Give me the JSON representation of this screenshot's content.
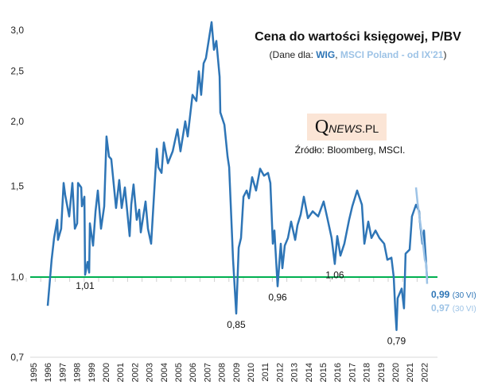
{
  "title": "Cena do wartości księgowej, P/BV",
  "subtitle": {
    "open": "(Dane dla: ",
    "wig": "WIG",
    "sep": ", ",
    "msci": "MSCI Poland - od IX'21",
    "close": ")"
  },
  "logo": {
    "q": "Q",
    "news": "NEWS",
    "pl": ".PL"
  },
  "source": "Źródło: Bloomberg, MSCI.",
  "end_labels": [
    {
      "value": "0,99",
      "date": "(30 VI)",
      "color": "#2e75b6"
    },
    {
      "value": "0,97",
      "date": "(30 VI)",
      "color": "#9dc3e6"
    }
  ],
  "chart_data": {
    "type": "line",
    "title": "Cena do wartości księgowej, P/BV",
    "xlabel": "",
    "ylabel": "",
    "yscale": "log",
    "ylim": [
      0.7,
      3.1
    ],
    "xlim": [
      1995,
      2022
    ],
    "yticks": [
      {
        "v": 0.7,
        "label": "0,7"
      },
      {
        "v": 1.0,
        "label": "1,0"
      },
      {
        "v": 1.5,
        "label": "1,5"
      },
      {
        "v": 2.0,
        "label": "2,0"
      },
      {
        "v": 2.5,
        "label": "2,5"
      },
      {
        "v": 3.0,
        "label": "3,0"
      }
    ],
    "xticks": [
      "1995",
      "1996",
      "1997",
      "1998",
      "1999",
      "2000",
      "2001",
      "2002",
      "2003",
      "2004",
      "2005",
      "2006",
      "2007",
      "2008",
      "2009",
      "2010",
      "2011",
      "2012",
      "2013",
      "2014",
      "2015",
      "2016",
      "2017",
      "2018",
      "2019",
      "2020",
      "2021",
      "2022"
    ],
    "reference_line": {
      "value": 1.0,
      "color": "#00b050"
    },
    "series": [
      {
        "name": "WIG",
        "color": "#2e75b6",
        "points": [
          [
            1995.99,
            0.88
          ],
          [
            1996.26,
            1.08
          ],
          [
            1996.43,
            1.19
          ],
          [
            1996.65,
            1.29
          ],
          [
            1996.7,
            1.18
          ],
          [
            1996.92,
            1.24
          ],
          [
            1997.09,
            1.52
          ],
          [
            1997.2,
            1.44
          ],
          [
            1997.47,
            1.31
          ],
          [
            1997.69,
            1.52
          ],
          [
            1997.86,
            1.24
          ],
          [
            1998.02,
            1.27
          ],
          [
            1998.08,
            1.52
          ],
          [
            1998.3,
            1.49
          ],
          [
            1998.35,
            1.37
          ],
          [
            1998.52,
            1.43
          ],
          [
            1998.57,
            1.01
          ],
          [
            1998.74,
            1.07
          ],
          [
            1998.85,
            1.02
          ],
          [
            1998.9,
            1.27
          ],
          [
            1999.12,
            1.15
          ],
          [
            1999.29,
            1.34
          ],
          [
            1999.45,
            1.47
          ],
          [
            1999.67,
            1.24
          ],
          [
            1999.89,
            1.37
          ],
          [
            2000.05,
            1.87
          ],
          [
            2000.22,
            1.71
          ],
          [
            2000.38,
            1.69
          ],
          [
            2000.71,
            1.36
          ],
          [
            2000.93,
            1.54
          ],
          [
            2001.1,
            1.36
          ],
          [
            2001.32,
            1.49
          ],
          [
            2001.65,
            1.2
          ],
          [
            2001.76,
            1.38
          ],
          [
            2001.92,
            1.51
          ],
          [
            2002.14,
            1.29
          ],
          [
            2002.31,
            1.35
          ],
          [
            2002.42,
            1.22
          ],
          [
            2002.75,
            1.4
          ],
          [
            2002.91,
            1.24
          ],
          [
            2003.13,
            1.16
          ],
          [
            2003.52,
            1.77
          ],
          [
            2003.63,
            1.63
          ],
          [
            2003.85,
            1.59
          ],
          [
            2004.01,
            1.82
          ],
          [
            2004.29,
            1.66
          ],
          [
            2004.62,
            1.75
          ],
          [
            2004.95,
            1.93
          ],
          [
            2005.16,
            1.75
          ],
          [
            2005.49,
            2.0
          ],
          [
            2005.66,
            1.87
          ],
          [
            2005.99,
            2.25
          ],
          [
            2006.26,
            2.19
          ],
          [
            2006.43,
            2.5
          ],
          [
            2006.59,
            2.25
          ],
          [
            2006.76,
            2.59
          ],
          [
            2006.92,
            2.65
          ],
          [
            2007.31,
            3.11
          ],
          [
            2007.47,
            2.75
          ],
          [
            2007.64,
            2.86
          ],
          [
            2007.86,
            2.44
          ],
          [
            2007.91,
            2.08
          ],
          [
            2008.19,
            1.97
          ],
          [
            2008.41,
            1.71
          ],
          [
            2008.52,
            1.63
          ],
          [
            2008.79,
            1.08
          ],
          [
            2009.01,
            0.85
          ],
          [
            2009.18,
            1.14
          ],
          [
            2009.34,
            1.19
          ],
          [
            2009.51,
            1.43
          ],
          [
            2009.73,
            1.47
          ],
          [
            2009.89,
            1.42
          ],
          [
            2010.11,
            1.56
          ],
          [
            2010.38,
            1.47
          ],
          [
            2010.66,
            1.62
          ],
          [
            2010.93,
            1.57
          ],
          [
            2011.21,
            1.59
          ],
          [
            2011.37,
            1.52
          ],
          [
            2011.54,
            1.16
          ],
          [
            2011.65,
            1.23
          ],
          [
            2011.87,
            0.96
          ],
          [
            2012.09,
            1.16
          ],
          [
            2012.2,
            1.04
          ],
          [
            2012.36,
            1.15
          ],
          [
            2012.58,
            1.19
          ],
          [
            2012.8,
            1.28
          ],
          [
            2013.08,
            1.18
          ],
          [
            2013.24,
            1.26
          ],
          [
            2013.46,
            1.32
          ],
          [
            2013.68,
            1.43
          ],
          [
            2013.96,
            1.3
          ],
          [
            2014.29,
            1.34
          ],
          [
            2014.67,
            1.31
          ],
          [
            2015.05,
            1.4
          ],
          [
            2015.33,
            1.29
          ],
          [
            2015.6,
            1.19
          ],
          [
            2015.82,
            1.06
          ],
          [
            2015.99,
            1.2
          ],
          [
            2016.21,
            1.1
          ],
          [
            2016.48,
            1.16
          ],
          [
            2016.81,
            1.29
          ],
          [
            2017.03,
            1.37
          ],
          [
            2017.36,
            1.47
          ],
          [
            2017.69,
            1.38
          ],
          [
            2017.86,
            1.16
          ],
          [
            2018.13,
            1.28
          ],
          [
            2018.35,
            1.19
          ],
          [
            2018.63,
            1.23
          ],
          [
            2018.9,
            1.19
          ],
          [
            2019.23,
            1.16
          ],
          [
            2019.45,
            1.08
          ],
          [
            2019.73,
            1.09
          ],
          [
            2019.89,
            1.0
          ],
          [
            2020.0,
            0.86
          ],
          [
            2020.08,
            0.79
          ],
          [
            2020.16,
            0.91
          ],
          [
            2020.44,
            0.95
          ],
          [
            2020.6,
            0.87
          ],
          [
            2020.71,
            1.11
          ],
          [
            2020.99,
            1.13
          ],
          [
            2021.15,
            1.31
          ],
          [
            2021.43,
            1.38
          ],
          [
            2021.65,
            1.34
          ],
          [
            2021.7,
            1.28
          ],
          [
            2021.87,
            1.16
          ],
          [
            2021.98,
            1.23
          ],
          [
            2022.2,
            0.99
          ]
        ]
      },
      {
        "name": "MSCI Poland",
        "color": "#9dc3e6",
        "points": [
          [
            2021.43,
            1.49
          ],
          [
            2021.54,
            1.39
          ],
          [
            2021.65,
            1.32
          ],
          [
            2021.87,
            1.19
          ],
          [
            2022.04,
            1.08
          ],
          [
            2022.14,
            1.06
          ],
          [
            2022.2,
            0.97
          ]
        ]
      }
    ],
    "annotations": [
      {
        "x": 1998.57,
        "y": 1.01,
        "label": "1,01",
        "pos": "below"
      },
      {
        "x": 2009.01,
        "y": 0.85,
        "label": "0,85",
        "pos": "below"
      },
      {
        "x": 2011.87,
        "y": 0.96,
        "label": "0,96",
        "pos": "below"
      },
      {
        "x": 2015.82,
        "y": 1.06,
        "label": "1,06",
        "pos": "below"
      },
      {
        "x": 2020.08,
        "y": 0.79,
        "label": "0,79",
        "pos": "below"
      }
    ]
  }
}
